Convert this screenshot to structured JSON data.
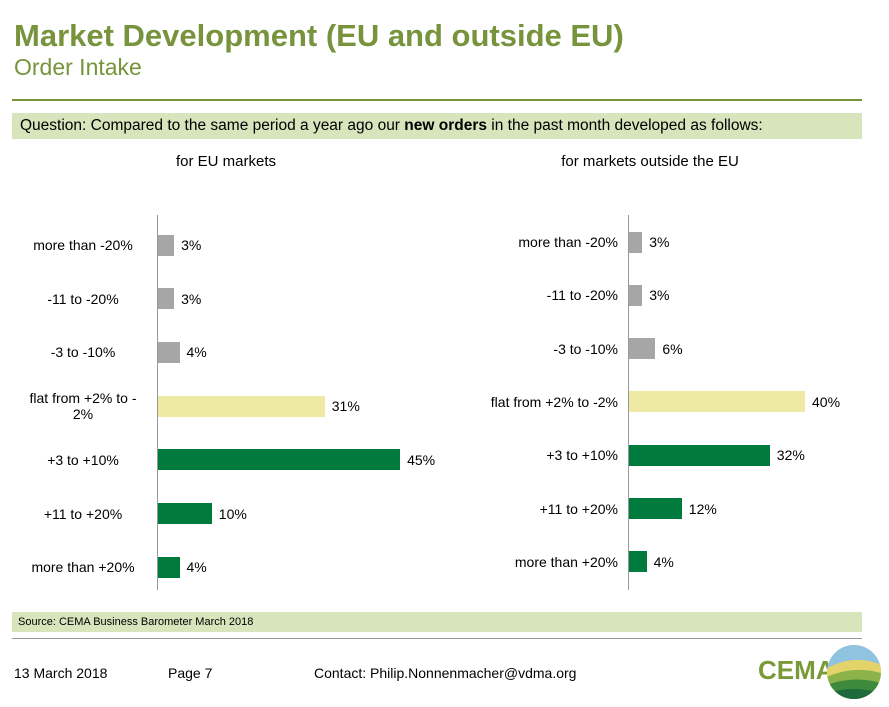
{
  "header": {
    "title": "Market Development (EU and outside EU)",
    "subtitle": "Order Intake"
  },
  "question": [
    "Question: Compared to the same period a year ago our ",
    "new orders",
    " in the past month developed as follows:"
  ],
  "chart_data": [
    {
      "type": "bar",
      "orientation": "horizontal",
      "title": "for EU markets",
      "categories": [
        "more than -20%",
        "-11 to -20%",
        "-3 to -10%",
        "flat from +2% to - 2%",
        "+3 to +10%",
        "+11 to +20%",
        "more than +20%"
      ],
      "values": [
        3,
        3,
        4,
        31,
        45,
        10,
        4
      ],
      "value_labels": [
        "3%",
        "3%",
        "4%",
        "31%",
        "45%",
        "10%",
        "4%"
      ],
      "colors": [
        "#a6a6a6",
        "#a6a6a6",
        "#a6a6a6",
        "#eeeaa6",
        "#007a3d",
        "#007a3d",
        "#007a3d"
      ]
    },
    {
      "type": "bar",
      "orientation": "horizontal",
      "title": "for markets outside the EU",
      "categories": [
        "more than -20%",
        "-11 to -20%",
        "-3 to -10%",
        "flat from +2% to -2%",
        "+3 to +10%",
        "+11 to +20%",
        "more than +20%"
      ],
      "values": [
        3,
        3,
        6,
        40,
        32,
        12,
        4
      ],
      "value_labels": [
        "3%",
        "3%",
        "6%",
        "40%",
        "32%",
        "12%",
        "4%"
      ],
      "colors": [
        "#a6a6a6",
        "#a6a6a6",
        "#a6a6a6",
        "#eeeaa6",
        "#007a3d",
        "#007a3d",
        "#007a3d"
      ]
    }
  ],
  "source": "Source: CEMA Business Barometer March 2018",
  "footer": {
    "date": "13 March 2018",
    "page": "Page 7",
    "contact": "Contact: Philip.Nonnenmacher@vdma.org",
    "logo": "CEMA"
  }
}
